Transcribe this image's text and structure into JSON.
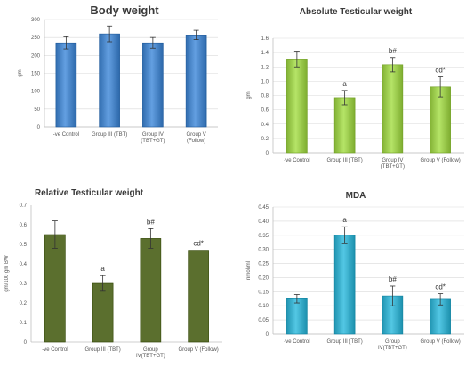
{
  "chart_data": [
    {
      "type": "bar",
      "title": "Body weight",
      "ylabel": "gm",
      "ylim": [
        0,
        300
      ],
      "yticks": [
        0,
        50,
        100,
        150,
        200,
        250,
        300
      ],
      "categories": [
        [
          "-ve Control"
        ],
        [
          "Group III (TBT)"
        ],
        [
          "Group IV",
          "(TBT+GT)"
        ],
        [
          "Group V",
          "(Follow)"
        ]
      ],
      "values": [
        235,
        260,
        235,
        257
      ],
      "errors": [
        17,
        22,
        15,
        13
      ],
      "annotations": [
        "",
        "",
        "",
        ""
      ],
      "color": "#4a86c8",
      "grid": true
    },
    {
      "type": "bar",
      "title": "Absolute Testicular weight",
      "ylabel": "gm",
      "ylim": [
        0,
        1.6
      ],
      "yticks": [
        0,
        0.2,
        0.4,
        0.6,
        0.8,
        1,
        1.2,
        1.4,
        1.6
      ],
      "categories": [
        [
          "-ve Control"
        ],
        [
          "Group III (TBT)"
        ],
        [
          "Group IV",
          "(TBT+GT)"
        ],
        [
          "Group V (Follow)"
        ]
      ],
      "values": [
        1.31,
        0.77,
        1.23,
        0.92
      ],
      "errors": [
        0.11,
        0.1,
        0.1,
        0.14
      ],
      "annotations": [
        "",
        "a",
        "b#",
        "cd*"
      ],
      "color": "#9ccb4e",
      "grid": true
    },
    {
      "type": "bar",
      "title": "Relative Testicular weight",
      "ylabel": "gm/100 gm BW",
      "ylim": [
        0,
        0.7
      ],
      "yticks": [
        0,
        0.1,
        0.2,
        0.3,
        0.4,
        0.5,
        0.6,
        0.7
      ],
      "categories": [
        [
          "-ve Control"
        ],
        [
          "Group III (TBT)"
        ],
        [
          "Group",
          "IV(TBT+GT)"
        ],
        [
          "Group V (Follow)"
        ]
      ],
      "values": [
        0.55,
        0.3,
        0.53,
        0.47
      ],
      "errors": [
        0.07,
        0.04,
        0.05,
        0.0
      ],
      "annotations": [
        "",
        "a",
        "b#",
        "cd*"
      ],
      "color": "#5b6f2e",
      "grid": false
    },
    {
      "type": "bar",
      "title": "MDA",
      "ylabel": "nmol/ml",
      "ylim": [
        0,
        0.45
      ],
      "yticks": [
        0,
        0.05,
        0.1,
        0.15,
        0.2,
        0.25,
        0.3,
        0.35,
        0.4,
        0.45
      ],
      "categories": [
        [
          "-ve Control"
        ],
        [
          "Group III (TBT)"
        ],
        [
          "Group",
          "IV(TBT+GT)"
        ],
        [
          "Group V (Follow)"
        ]
      ],
      "values": [
        0.125,
        0.35,
        0.135,
        0.123
      ],
      "errors": [
        0.015,
        0.03,
        0.035,
        0.02
      ],
      "annotations": [
        "",
        "a",
        "b#",
        "cd*"
      ],
      "color": "#3aaecb",
      "grid": true
    }
  ]
}
